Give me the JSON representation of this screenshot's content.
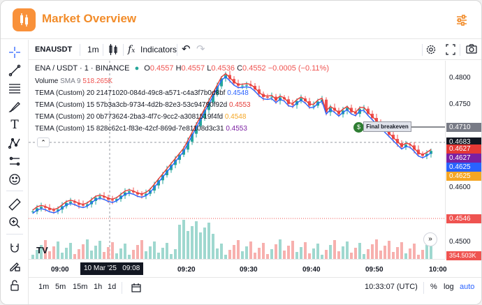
{
  "header": {
    "title": "Market Overview",
    "logo_icon": "candlestick-logo-icon",
    "settings_icon": "sliders-icon"
  },
  "toolbar": {
    "symbol": "ENAUSDT",
    "interval": "1m",
    "indicators_label": "Indicators"
  },
  "legend": {
    "line1": {
      "pair": "ENA / USDT · 1 · BINANCE",
      "o_label": "O",
      "o": "0.4557",
      "h_label": "H",
      "h": "0.4557",
      "l_label": "L",
      "l": "0.4536",
      "c_label": "C",
      "c": "0.4552",
      "chg": "−0.0005 (−0.11%)"
    },
    "volume": {
      "label": "Volume",
      "params": "SMA 9",
      "value": "518.265K"
    },
    "tema1": {
      "label": "TEMA (Custom)",
      "params": "20 21471020-084d-49c8-a571-c4a3f7b0d8bf",
      "value": "0.4548"
    },
    "tema2": {
      "label": "TEMA (Custom)",
      "params": "15 57b3a3cb-9734-4d2b-82e3-53c94790f92d",
      "value": "0.4553"
    },
    "tema3": {
      "label": "TEMA (Custom)",
      "params": "20 0b773624-2ba3-4f7c-9cc2-a3081519f4fd",
      "value": "0.4548"
    },
    "tema4": {
      "label": "TEMA (Custom)",
      "params": "15 828c62c1-f83e-42cf-869d-7e81108d3c31",
      "value": "0.4553"
    }
  },
  "price_axis": {
    "ticks": [
      "0.4800",
      "0.4750",
      "0.4600",
      "0.4500"
    ],
    "badges": {
      "last": "0.4710",
      "cross": "0.4683",
      "red": "0.4627",
      "purple": "0.4627",
      "blue": "0.4625",
      "yellow": "0.4625",
      "level": "0.4546",
      "volume": "354.503K"
    }
  },
  "time_axis": {
    "ticks": [
      "09:00",
      "09:20",
      "09:30",
      "09:40",
      "09:50",
      "10:00"
    ],
    "crosshair_label": "10 Mar '25   09:08"
  },
  "annotation": {
    "label": "Final breakeven"
  },
  "bottom_bar": {
    "ranges": [
      "1m",
      "5m",
      "15m",
      "1h",
      "1d"
    ],
    "clock": "10:33:07 (UTC)",
    "percent": "%",
    "log": "log",
    "auto": "auto"
  },
  "colors": {
    "accent": "#f28c2a",
    "up": "#26a69a",
    "down": "#ef5350",
    "tema_red": "#e53935",
    "tema_blue": "#2962ff"
  }
}
